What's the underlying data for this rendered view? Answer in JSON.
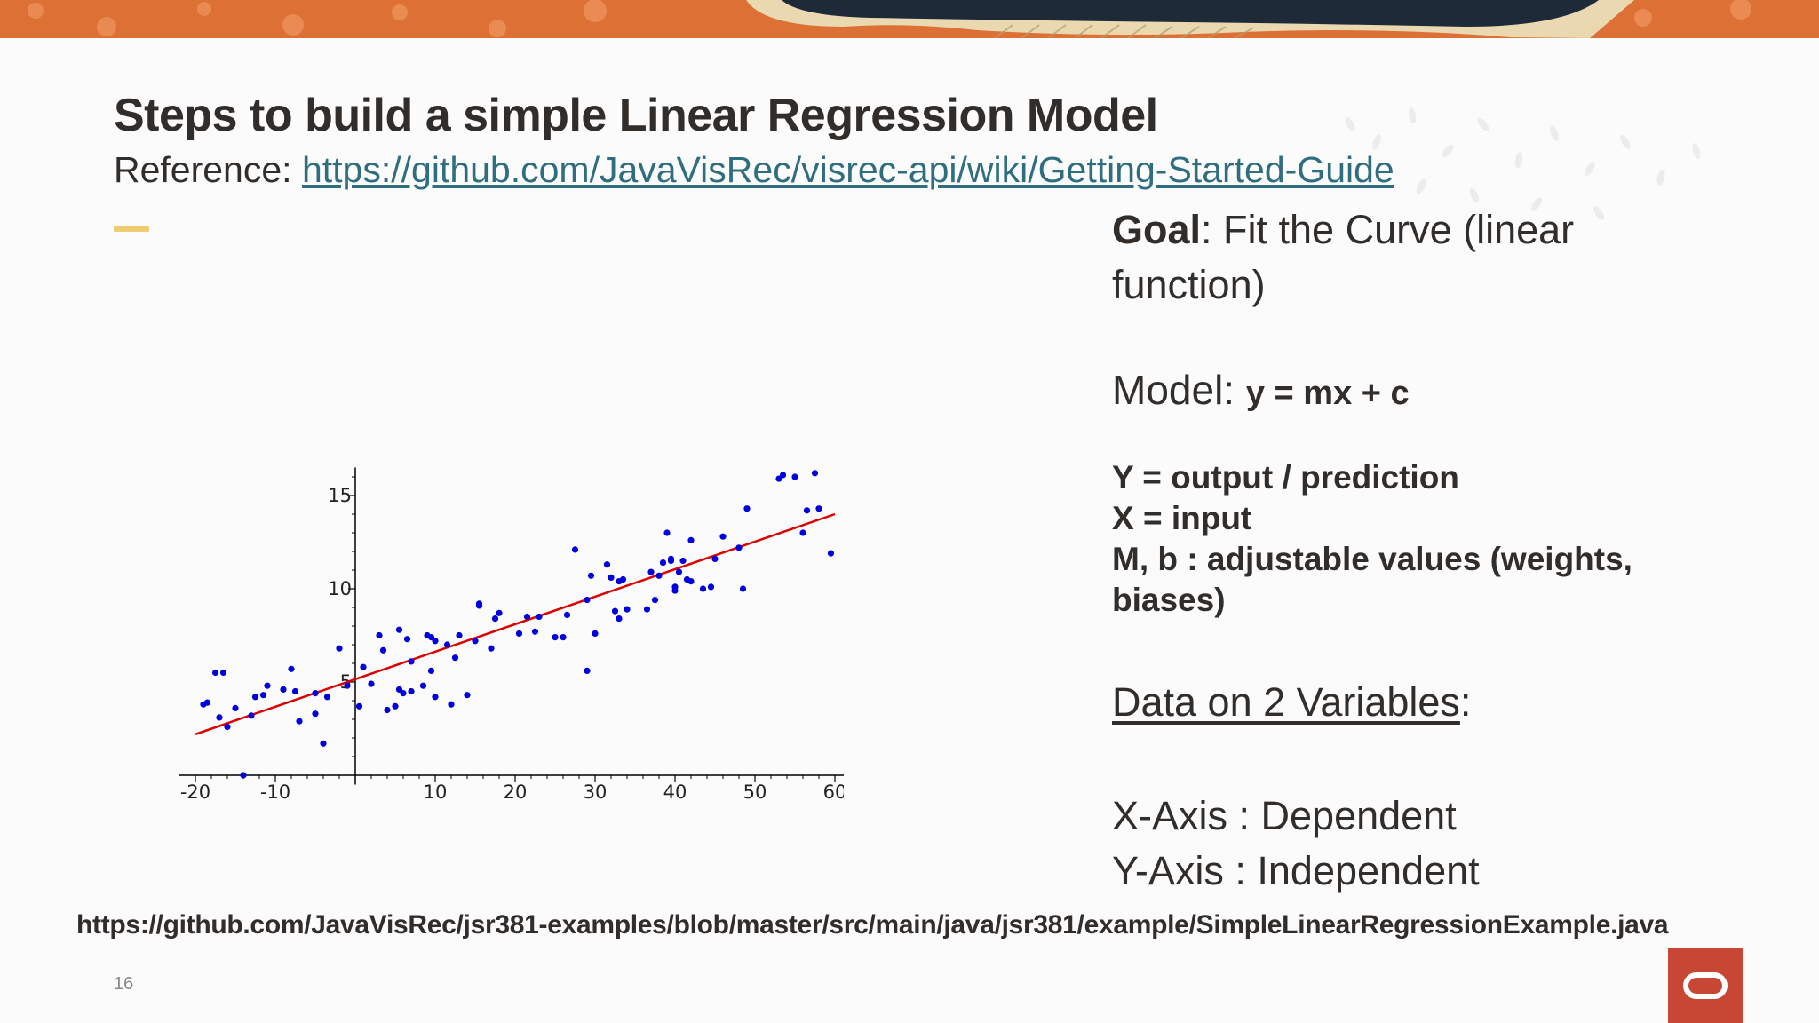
{
  "slide": {
    "title": "Steps to build a simple Linear Regression Model",
    "reference_label": "Reference: ",
    "reference_link": "https://github.com/JavaVisRec/visrec-api/wiki/Getting-Started-Guide",
    "page_number": "16",
    "bottom_link": "https://github.com/JavaVisRec/jsr381-examples/blob/master/src/main/java/jsr381/example/SimpleLinearRegressionExample.java",
    "accent_color": "#f0cc71",
    "link_color": "#2f6e7e",
    "logo_color": "#c74634",
    "logo_icon": "oracle-logo-icon"
  },
  "right_panel": {
    "goal_label": "Goal",
    "goal_text": ": Fit the Curve (linear function)",
    "model_label": "Model: ",
    "model_formula": "y = mx + c",
    "def_y": "Y = output / prediction",
    "def_x": "X = input",
    "def_mb": "M, b : adjustable values (weights, biases)",
    "data_title": "Data on 2 Variables",
    "data_title_suffix": ":",
    "x_axis_note": "X-Axis : Dependent",
    "y_axis_note": "Y-Axis : Independent"
  },
  "chart_data": {
    "type": "scatter",
    "xlim": [
      -22,
      62
    ],
    "ylim": [
      -0.5,
      16.5
    ],
    "x_ticks": [
      -20,
      -10,
      10,
      20,
      30,
      40,
      50,
      60
    ],
    "y_ticks": [
      5,
      10,
      15
    ],
    "point_color": "#0000dd",
    "line_color": "#dd0000",
    "fit_line": {
      "x": [
        -20,
        60
      ],
      "y": [
        2.2,
        14.0
      ]
    },
    "points": [
      [
        -19,
        3.8
      ],
      [
        -18.5,
        3.9
      ],
      [
        -17.5,
        5.5
      ],
      [
        -16.5,
        5.5
      ],
      [
        -17,
        3.1
      ],
      [
        -16,
        2.6
      ],
      [
        -15,
        3.6
      ],
      [
        -14,
        0
      ],
      [
        -13,
        3.2
      ],
      [
        -12.5,
        4.2
      ],
      [
        -11.5,
        4.3
      ],
      [
        -11,
        4.8
      ],
      [
        -9,
        4.6
      ],
      [
        -8,
        5.7
      ],
      [
        -7.5,
        4.5
      ],
      [
        -7,
        2.9
      ],
      [
        -5,
        3.3
      ],
      [
        -5,
        4.4
      ],
      [
        -4,
        1.7
      ],
      [
        -3.5,
        4.2
      ],
      [
        -2,
        6.8
      ],
      [
        -1,
        4.8
      ],
      [
        1,
        5.8
      ],
      [
        0.5,
        3.7
      ],
      [
        2,
        4.9
      ],
      [
        3,
        7.5
      ],
      [
        3.5,
        6.7
      ],
      [
        4,
        3.5
      ],
      [
        5,
        3.7
      ],
      [
        5.5,
        7.8
      ],
      [
        5.5,
        4.6
      ],
      [
        6,
        4.4
      ],
      [
        6.5,
        7.3
      ],
      [
        7,
        6.1
      ],
      [
        7,
        4.5
      ],
      [
        8.5,
        4.8
      ],
      [
        9,
        7.5
      ],
      [
        9.5,
        7.4
      ],
      [
        10,
        7.2
      ],
      [
        9.5,
        5.6
      ],
      [
        10,
        4.2
      ],
      [
        11.5,
        7.0
      ],
      [
        12,
        3.8
      ],
      [
        12.5,
        6.3
      ],
      [
        13,
        7.5
      ],
      [
        14,
        4.3
      ],
      [
        15,
        7.2
      ],
      [
        15.5,
        9.2
      ],
      [
        15.5,
        9.1
      ],
      [
        17,
        6.8
      ],
      [
        17.5,
        8.4
      ],
      [
        18,
        8.7
      ],
      [
        20.5,
        7.6
      ],
      [
        21.5,
        8.5
      ],
      [
        22.5,
        7.7
      ],
      [
        23,
        8.5
      ],
      [
        25,
        7.4
      ],
      [
        26,
        7.4
      ],
      [
        26.5,
        8.6
      ],
      [
        27.5,
        12.1
      ],
      [
        29,
        9.4
      ],
      [
        29,
        5.6
      ],
      [
        29.5,
        10.7
      ],
      [
        30,
        7.6
      ],
      [
        31.5,
        11.3
      ],
      [
        32,
        10.6
      ],
      [
        32.5,
        8.8
      ],
      [
        33,
        8.4
      ],
      [
        33,
        10.4
      ],
      [
        33.5,
        10.5
      ],
      [
        34,
        8.9
      ],
      [
        36.5,
        8.9
      ],
      [
        37,
        10.9
      ],
      [
        37.5,
        9.4
      ],
      [
        38,
        10.7
      ],
      [
        38.5,
        11.4
      ],
      [
        39,
        13.0
      ],
      [
        39.5,
        11.6
      ],
      [
        39.5,
        11.5
      ],
      [
        40,
        9.9
      ],
      [
        40,
        10.1
      ],
      [
        40.5,
        10.9
      ],
      [
        41,
        11.5
      ],
      [
        41.5,
        10.5
      ],
      [
        42,
        10.4
      ],
      [
        42,
        12.6
      ],
      [
        43.5,
        10.0
      ],
      [
        44.5,
        10.1
      ],
      [
        45,
        11.6
      ],
      [
        46,
        12.8
      ],
      [
        48,
        12.2
      ],
      [
        48.5,
        10.0
      ],
      [
        49,
        14.3
      ],
      [
        53,
        15.9
      ],
      [
        53.5,
        16.1
      ],
      [
        55,
        16.0
      ],
      [
        56,
        13.0
      ],
      [
        56.5,
        14.2
      ],
      [
        57.5,
        16.2
      ],
      [
        58,
        14.3
      ],
      [
        59.5,
        11.9
      ]
    ]
  }
}
